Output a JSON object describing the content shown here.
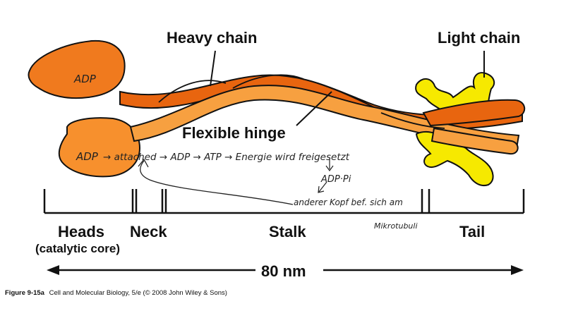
{
  "labels": {
    "heavy_chain": "Heavy chain",
    "light_chain": "Light chain",
    "flexible_hinge": "Flexible hinge",
    "heads": "Heads",
    "heads_sub": "(catalytic core)",
    "neck": "Neck",
    "stalk": "Stalk",
    "tail": "Tail",
    "length": "80 nm"
  },
  "annotations": {
    "head_top": "ADP",
    "head_bottom": "ADP",
    "sequence": "→ attached → ADP → ATP → Energie wird freigesetzt",
    "adp_pi": "ADP·Pi",
    "other_head": "anderer Kopf bef. sich am",
    "microtubuli": "Mikrotubuli"
  },
  "caption": {
    "figure": "Figure 9-15a",
    "source": "Cell and Molecular Biology, 5/e (© 2008 John Wiley & Sons)"
  },
  "colors": {
    "head": "#f07a1e",
    "head_light": "#f7902d",
    "strand_dark": "#e8650f",
    "strand_light": "#f7a040",
    "light_chain": "#f6e900",
    "outline": "#111111"
  }
}
